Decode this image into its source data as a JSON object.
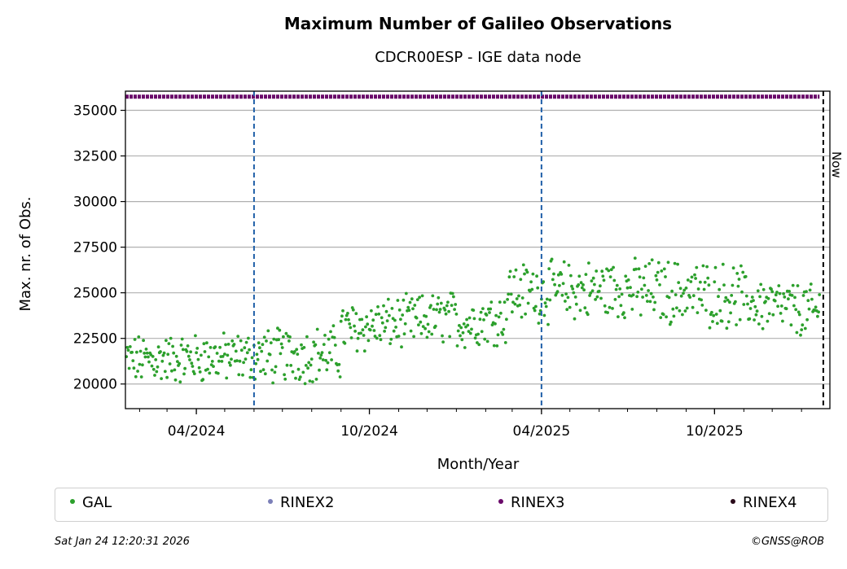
{
  "chart_data": {
    "type": "scatter",
    "title": "Maximum Number of Galileo Observations",
    "subtitle": "CDCR00ESP - IGE data node",
    "xlabel": "Month/Year",
    "ylabel": "Max. nr. of Obs.",
    "x_tick_labels": [
      "04/2024",
      "10/2024",
      "04/2025",
      "10/2025"
    ],
    "y_tick_labels": [
      "20000",
      "22500",
      "25000",
      "27500",
      "30000",
      "32500",
      "35000"
    ],
    "y_ticks": [
      20000,
      22500,
      25000,
      27500,
      30000,
      32500,
      35000
    ],
    "xlim": [
      "2024-01-17",
      "2026-01-31"
    ],
    "ylim": [
      18650,
      36050
    ],
    "grid": "horizontal",
    "legend_placement": "below",
    "vlines": [
      {
        "date": "2024-06-01",
        "color": "#1f5fa8",
        "style": "dashed"
      },
      {
        "date": "2025-04-01",
        "color": "#1f5fa8",
        "style": "dashed"
      },
      {
        "date": "2026-01-24",
        "color": "#000000",
        "style": "dashed",
        "label": "Now"
      }
    ],
    "series": [
      {
        "name": "GAL",
        "color": "#2ca02c",
        "segments": [
          {
            "start": "2024-01-18",
            "end": "2024-06-01",
            "base_start": 21300,
            "base_end": 21500,
            "spread": 2300
          },
          {
            "start": "2024-06-02",
            "end": "2024-08-31",
            "base_start": 21500,
            "base_end": 21700,
            "spread": 2600
          },
          {
            "start": "2024-09-01",
            "end": "2024-12-31",
            "base_start": 23000,
            "base_end": 23700,
            "spread": 2400
          },
          {
            "start": "2025-01-01",
            "end": "2025-02-23",
            "base_start": 23300,
            "base_end": 23700,
            "spread": 2400
          },
          {
            "start": "2025-02-24",
            "end": "2025-06-30",
            "base_start": 25000,
            "base_end": 25200,
            "spread": 2800
          },
          {
            "start": "2025-07-01",
            "end": "2025-10-31",
            "base_start": 25200,
            "base_end": 24800,
            "spread": 3000
          },
          {
            "start": "2025-11-01",
            "end": "2026-01-20",
            "base_start": 24500,
            "base_end": 23900,
            "spread": 2500
          }
        ],
        "y_min": 19400,
        "y_max": 26900
      },
      {
        "name": "RINEX2",
        "color": "#7b7fb8",
        "values": []
      },
      {
        "name": "RINEX3",
        "color": "#6a0a6a",
        "x_range": [
          "2024-01-17",
          "2026-01-20"
        ],
        "value": 35750
      },
      {
        "name": "RINEX4",
        "color": "#2a0a1a",
        "values": []
      }
    ]
  },
  "footer": {
    "timestamp": "Sat Jan 24 12:20:31 2026",
    "credit": "©GNSS@ROB"
  }
}
